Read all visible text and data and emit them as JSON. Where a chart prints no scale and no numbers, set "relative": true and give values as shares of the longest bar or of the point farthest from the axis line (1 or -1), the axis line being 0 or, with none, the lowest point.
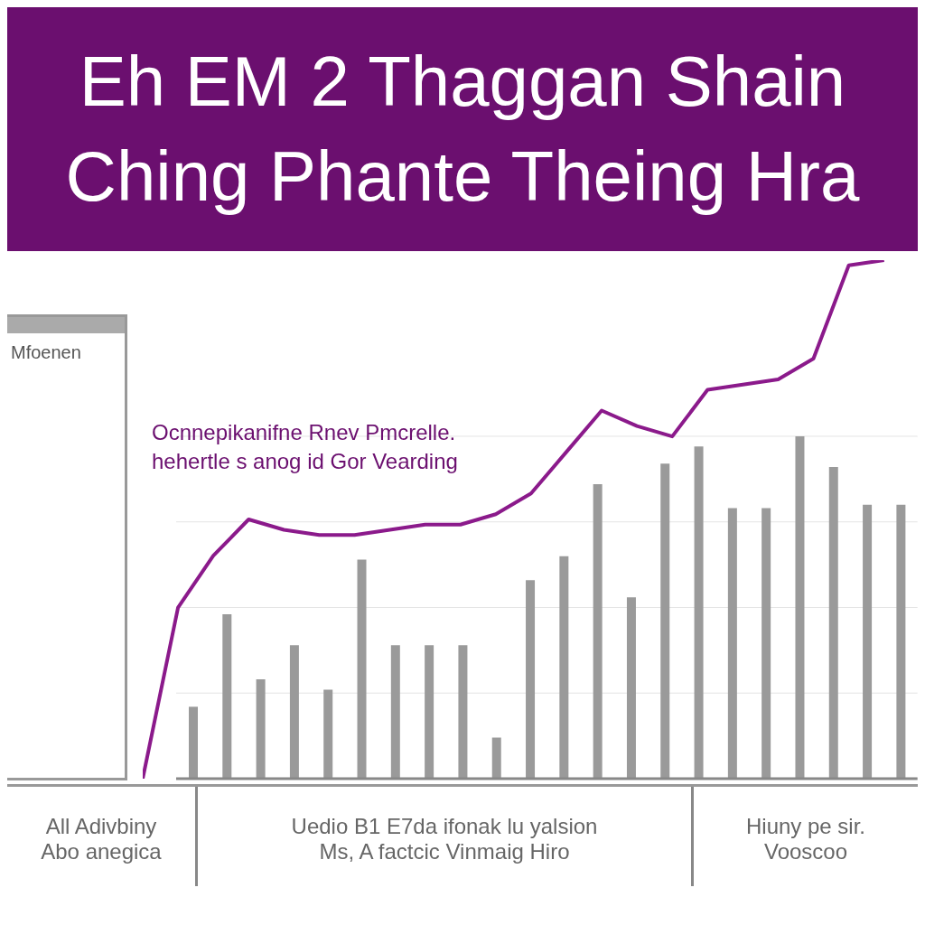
{
  "chart_data": [
    {
      "type": "bar",
      "title": "Eh EM 2 Thaggan Shain",
      "subtitle": "Ching Phante Theing Hra",
      "relative": true,
      "grid": "y",
      "legend": false,
      "color": "#9a9a9a",
      "categories": [
        null,
        null,
        null,
        null,
        null,
        null,
        null,
        null,
        null,
        null,
        null,
        null,
        null,
        null,
        null,
        null,
        null,
        null,
        null,
        null,
        null,
        null
      ],
      "values": [
        0.21,
        0.48,
        0.29,
        0.39,
        0.26,
        0.64,
        0.39,
        0.39,
        0.39,
        0.12,
        0.58,
        0.65,
        0.86,
        0.53,
        0.92,
        0.97,
        0.79,
        0.79,
        1,
        0.91,
        0.8,
        0.8
      ],
      "annotations": [
        "Mfoenen",
        "Ocnnepikanifne Rnev Pmcrelle.\nhehertle s anog id Gor Vearding",
        "All Adivbiny\nAbo anegica",
        "Uedio B1 E7da ifonak lu yalsion\nMs, A factcic Vinmaig Hiro",
        "Hiuny pe sir.\nVooscoo"
      ]
    },
    {
      "type": "line",
      "relative": true,
      "legend": false,
      "marker": "none",
      "color": "#8b1a8b",
      "categories": [
        null,
        null,
        null,
        null,
        null,
        null,
        null,
        null,
        null,
        null,
        null,
        null,
        null,
        null,
        null,
        null,
        null,
        null,
        null,
        null,
        null,
        null
      ],
      "values": [
        0,
        0.33,
        0.43,
        0.5,
        0.48,
        0.47,
        0.47,
        0.48,
        0.49,
        0.49,
        0.51,
        0.55,
        0.63,
        0.71,
        0.68,
        0.66,
        0.75,
        0.76,
        0.77,
        0.81,
        0.99,
        1
      ]
    }
  ]
}
